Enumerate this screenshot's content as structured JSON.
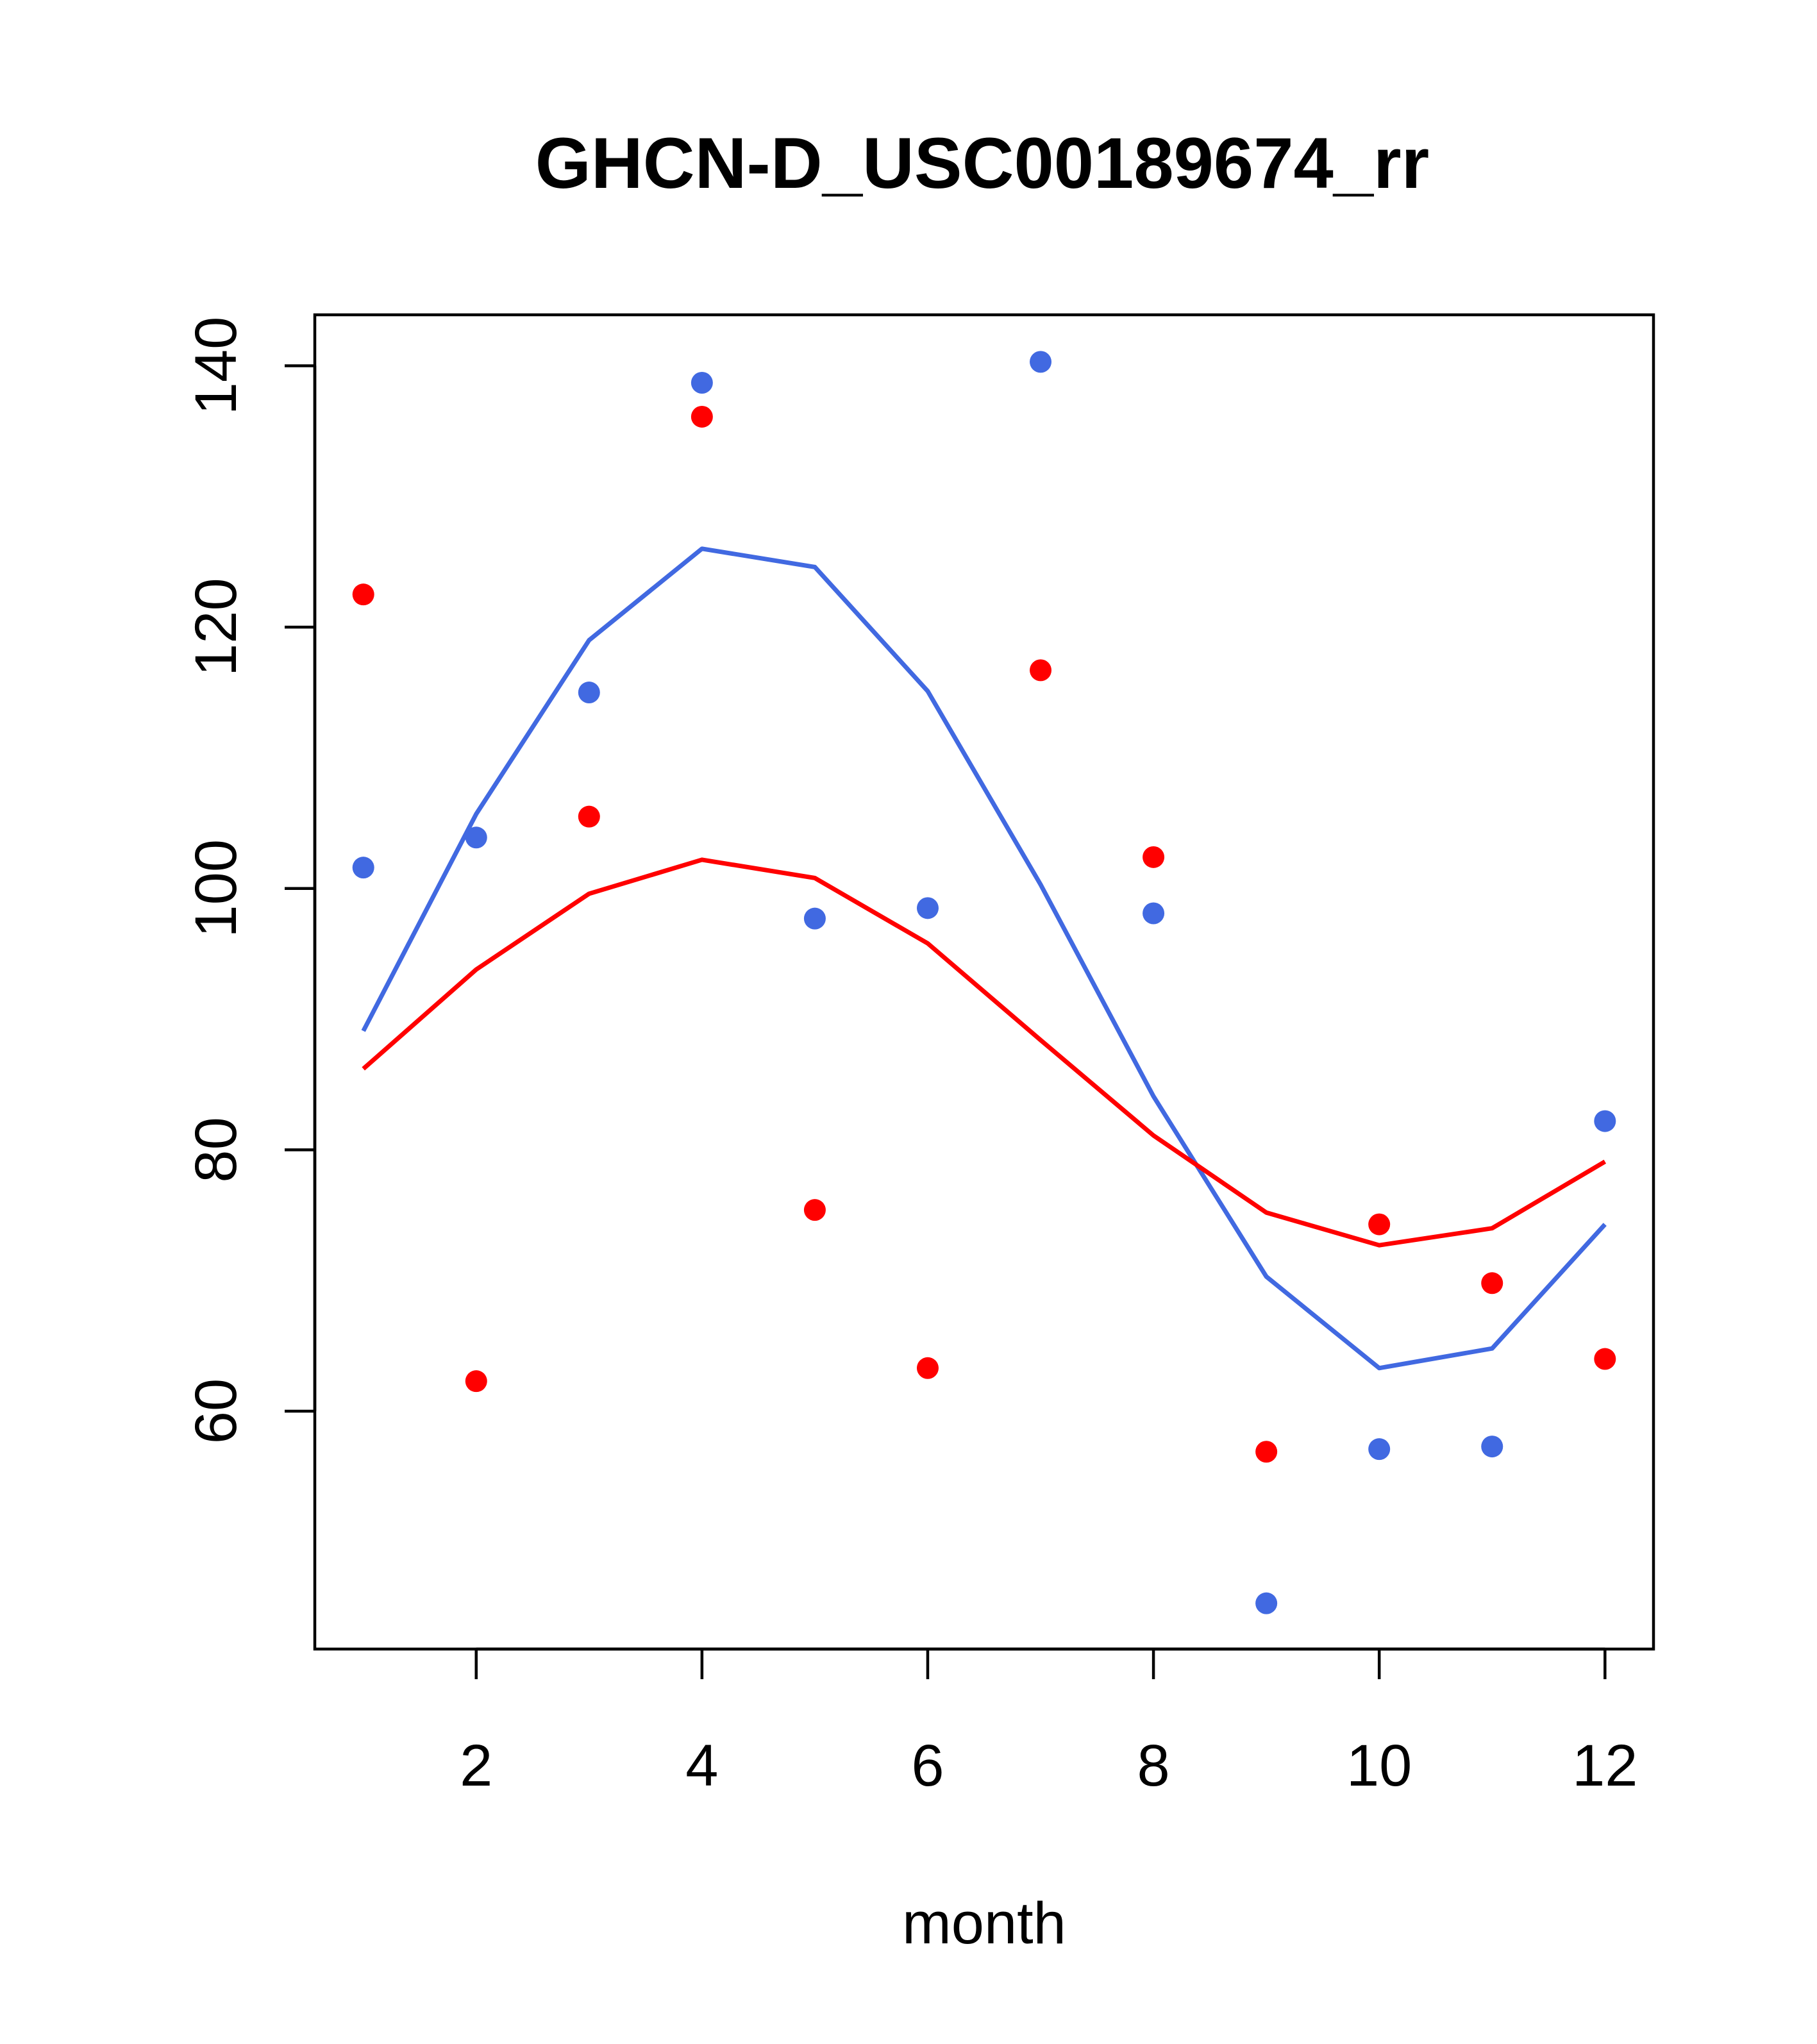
{
  "chart_data": {
    "type": "scatter",
    "title": "GHCN-D_USC00189674_rr",
    "xlabel": "month",
    "ylabel": "",
    "xlim": [
      0.57,
      12.43
    ],
    "ylim": [
      41.8,
      143.9
    ],
    "x_ticks": [
      2,
      4,
      6,
      8,
      10,
      12
    ],
    "y_ticks": [
      60,
      80,
      100,
      120,
      140
    ],
    "x": [
      1,
      2,
      3,
      4,
      5,
      6,
      7,
      8,
      9,
      10,
      11,
      12
    ],
    "series": [
      {
        "name": "blue points",
        "kind": "points",
        "color": "#4169E1",
        "values": [
          101.6,
          103.9,
          115.0,
          138.7,
          97.7,
          98.5,
          140.3,
          98.1,
          45.3,
          57.1,
          57.3,
          82.2
        ]
      },
      {
        "name": "red points",
        "kind": "points",
        "color": "#FF0000",
        "values": [
          122.5,
          62.3,
          105.5,
          136.1,
          75.4,
          63.3,
          116.7,
          102.4,
          56.9,
          74.3,
          69.8,
          64.0
        ]
      },
      {
        "name": "blue fit",
        "kind": "line",
        "color": "#4169E1",
        "values": [
          89.1,
          105.7,
          119.0,
          126.0,
          124.6,
          115.1,
          100.3,
          84.1,
          70.3,
          63.3,
          64.8,
          74.3
        ]
      },
      {
        "name": "red fit",
        "kind": "line",
        "color": "#FF0000",
        "values": [
          86.2,
          93.8,
          99.6,
          102.2,
          100.8,
          95.8,
          88.4,
          81.1,
          75.2,
          72.7,
          74.0,
          79.1
        ]
      }
    ]
  }
}
